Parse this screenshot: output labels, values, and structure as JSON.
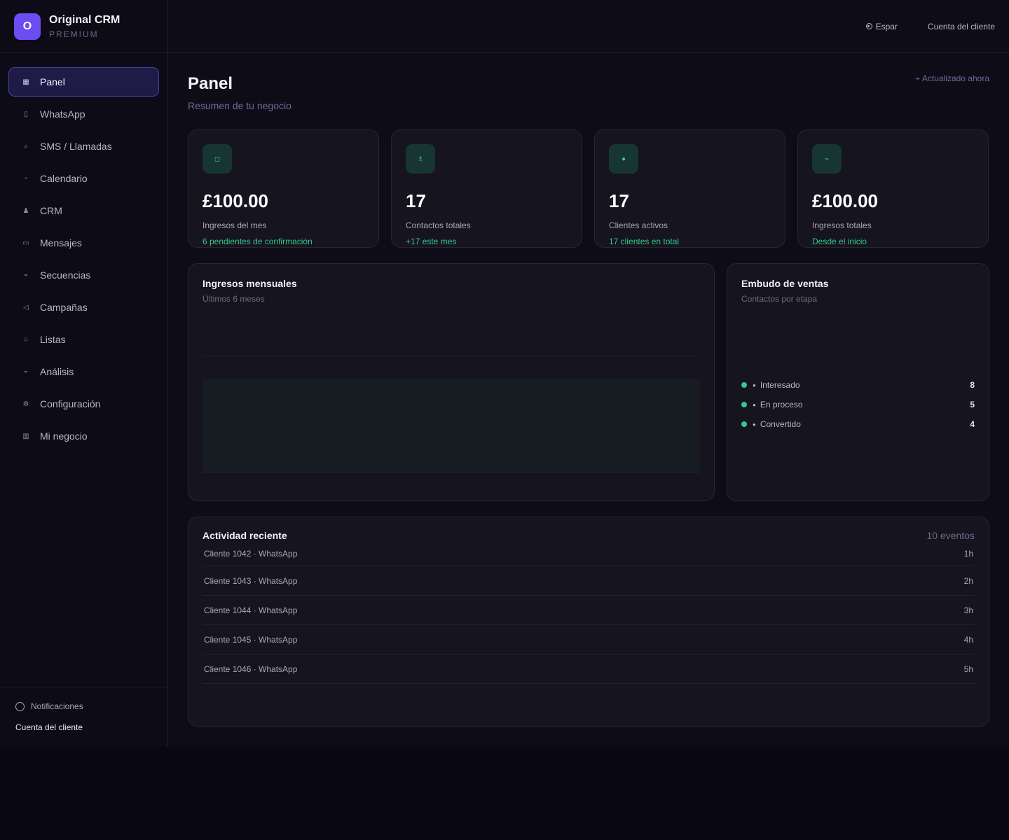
{
  "brand": {
    "logo_letter": "O",
    "name": "Original CRM",
    "tier": "PREMIUM"
  },
  "nav": {
    "items": [
      {
        "label": "Panel",
        "icon": "grid-icon",
        "glyph": "▦",
        "active": true
      },
      {
        "label": "WhatsApp",
        "icon": "phone-icon",
        "glyph": "▯",
        "active": false
      },
      {
        "label": "SMS / Llamadas",
        "icon": "search-icon",
        "glyph": "⌕",
        "active": false
      },
      {
        "label": "Calendario",
        "icon": "calendar-icon",
        "glyph": "▫",
        "active": false
      },
      {
        "label": "CRM",
        "icon": "user-icon",
        "glyph": "♟",
        "active": false
      },
      {
        "label": "Mensajes",
        "icon": "message-icon",
        "glyph": "▭",
        "active": false
      },
      {
        "label": "Secuencias",
        "icon": "sequence-icon",
        "glyph": "⌁",
        "active": false
      },
      {
        "label": "Campañas",
        "icon": "megaphone-icon",
        "glyph": "◁",
        "active": false
      },
      {
        "label": "Listas",
        "icon": "list-icon",
        "glyph": "♤",
        "active": false
      },
      {
        "label": "Análisis",
        "icon": "analytics-icon",
        "glyph": "⌁",
        "active": false
      },
      {
        "label": "Configuración",
        "icon": "gear-icon",
        "glyph": "⚙",
        "active": false
      },
      {
        "label": "Mi negocio",
        "icon": "building-icon",
        "glyph": "▥",
        "active": false
      }
    ]
  },
  "sidebar_bottom": {
    "notifications": "Notificaciones",
    "account": "Cuenta del cliente"
  },
  "topbar": {
    "language": "Espar",
    "account": "Cuenta del cliente"
  },
  "page": {
    "title": "Panel",
    "subtitle": "Resumen de tu negocio",
    "updated": "⌁ Actualizado ahora"
  },
  "cards": [
    {
      "icon": "wallet-icon",
      "glyph": "◻",
      "value": "£100.00",
      "label": "Ingresos del mes",
      "note": "6 pendientes de confirmación"
    },
    {
      "icon": "contacts-icon",
      "glyph": "♗",
      "value": "17",
      "label": "Contactos totales",
      "note": "+17 este mes"
    },
    {
      "icon": "active-clients-icon",
      "glyph": "●",
      "value": "17",
      "label": "Clientes activos",
      "note": "17 clientes en total"
    },
    {
      "icon": "trend-icon",
      "glyph": "⌁",
      "value": "£100.00",
      "label": "Ingresos totales",
      "note": "Desde el inicio"
    }
  ],
  "revenue_chart": {
    "title": "Ingresos mensuales",
    "subtitle": "Últimos 6 meses"
  },
  "chart_data": {
    "type": "area",
    "title": "Ingresos mensuales",
    "subtitle": "Últimos 6 meses",
    "grid": true,
    "colors": {
      "fill": "#171b22",
      "grid": "#1f1f2b"
    }
  },
  "funnel": {
    "title": "Embudo de ventas",
    "subtitle": "Contactos por etapa",
    "stages": [
      {
        "label": "Interesado",
        "count": "8"
      },
      {
        "label": "En proceso",
        "count": "5"
      },
      {
        "label": "Convertido",
        "count": "4"
      }
    ]
  },
  "activity": {
    "title": "Actividad reciente",
    "count": "10 eventos",
    "rows": [
      {
        "text": "Cliente 1042 · WhatsApp",
        "time": "1h"
      },
      {
        "text": "Cliente 1043 · WhatsApp",
        "time": "2h"
      },
      {
        "text": "Cliente 1044 · WhatsApp",
        "time": "3h"
      },
      {
        "text": "Cliente 1045 · WhatsApp",
        "time": "4h"
      },
      {
        "text": "Cliente 1046 · WhatsApp",
        "time": "5h"
      }
    ]
  },
  "colors": {
    "accent": "#6c4df2",
    "positive": "#34c98c",
    "background": "#0a0913"
  }
}
